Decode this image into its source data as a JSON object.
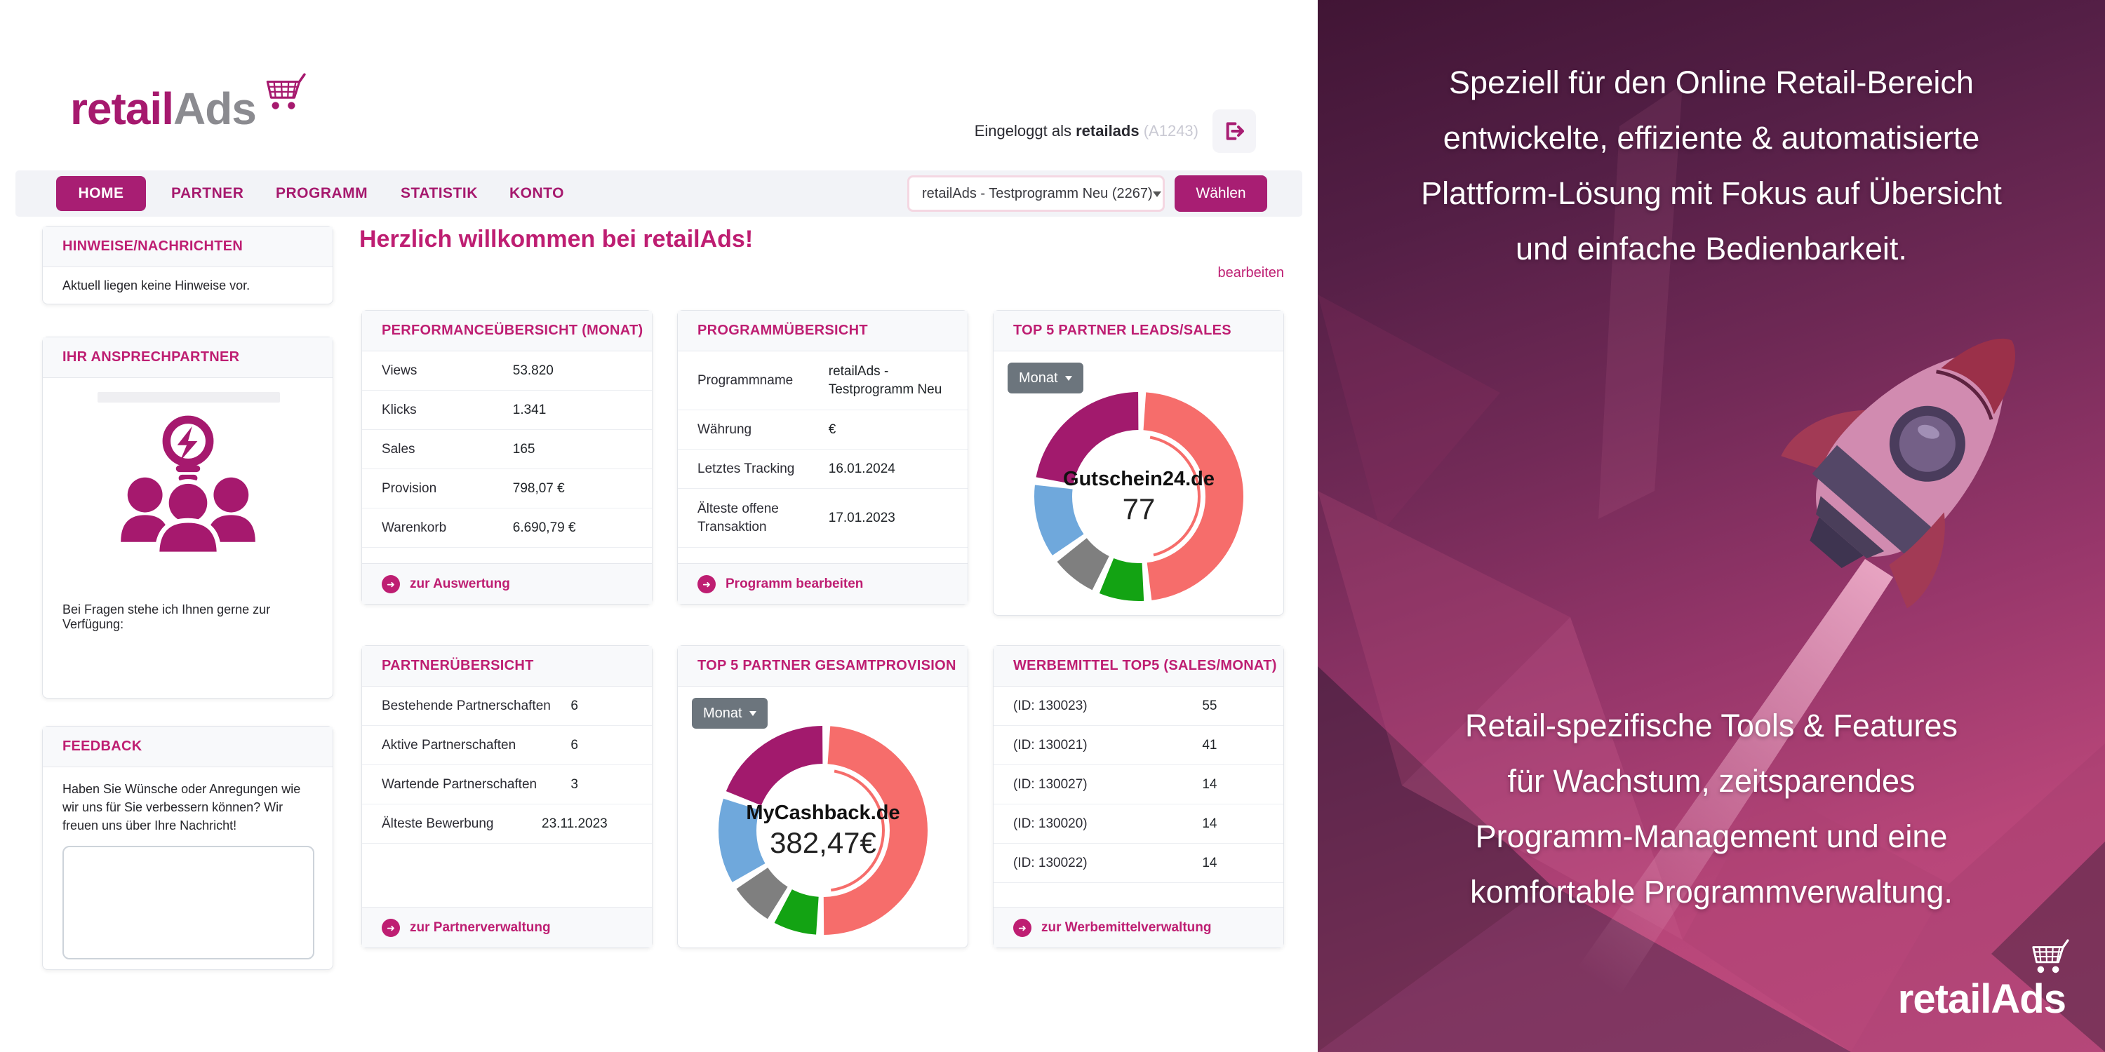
{
  "header": {
    "logo_part_1": "retail",
    "logo_part_2": "Ads",
    "login_prefix": "Eingeloggt als",
    "login_user": "retailads",
    "login_account": "(A1243)"
  },
  "nav": {
    "items": [
      {
        "label": "HOME",
        "active": true
      },
      {
        "label": "PARTNER",
        "active": false
      },
      {
        "label": "PROGRAMM",
        "active": false
      },
      {
        "label": "STATISTIK",
        "active": false
      },
      {
        "label": "KONTO",
        "active": false
      }
    ],
    "program_select_value": "retailAds - Testprogramm Neu (2267)",
    "choose_button": "Wählen"
  },
  "sidebar": {
    "notices": {
      "title": "HINWEISE/NACHRICHTEN",
      "empty_text": "Aktuell liegen keine Hinweise vor."
    },
    "contact": {
      "title": "IHR ANSPRECHPARTNER",
      "note": "Bei Fragen stehe ich Ihnen gerne zur Verfügung:"
    },
    "feedback": {
      "title": "FEEDBACK",
      "text": "Haben Sie Wünsche oder Anregungen wie wir uns für Sie verbessern können? Wir freuen uns über Ihre Nachricht!",
      "textarea_value": ""
    }
  },
  "main": {
    "welcome": "Herzlich willkommen bei retailAds!",
    "edit_link": "bearbeiten",
    "performance": {
      "title": "PERFORMANCEÜBERSICHT (MONAT)",
      "rows": [
        {
          "label": "Views",
          "value": "53.820"
        },
        {
          "label": "Klicks",
          "value": "1.341"
        },
        {
          "label": "Sales",
          "value": "165"
        },
        {
          "label": "Provision",
          "value": "798,07 €"
        },
        {
          "label": "Warenkorb",
          "value": "6.690,79 €"
        }
      ],
      "footer": "zur Auswertung"
    },
    "program": {
      "title": "PROGRAMMÜBERSICHT",
      "rows": [
        {
          "label": "Programmname",
          "value": "retailAds - Testprogramm Neu"
        },
        {
          "label": "Währung",
          "value": "€"
        },
        {
          "label": "Letztes Tracking",
          "value": "16.01.2024"
        },
        {
          "label": "Älteste offene Transaktion",
          "value": "17.01.2023"
        }
      ],
      "footer": "Programm bearbeiten"
    },
    "partners": {
      "title": "PARTNERÜBERSICHT",
      "rows": [
        {
          "label": "Bestehende Partnerschaften",
          "value": "6"
        },
        {
          "label": "Aktive Partnerschaften",
          "value": "6"
        },
        {
          "label": "Wartende Partnerschaften",
          "value": "3"
        },
        {
          "label": "Älteste Bewerbung",
          "value": "23.11.2023"
        }
      ],
      "footer": "zur Partnerverwaltung"
    },
    "ads": {
      "title": "WERBEMITTEL TOP5 (SALES/MONAT)",
      "rows": [
        {
          "label": "(ID: 130023)",
          "value": "55"
        },
        {
          "label": "(ID: 130021)",
          "value": "41"
        },
        {
          "label": "(ID: 130027)",
          "value": "14"
        },
        {
          "label": "(ID: 130020)",
          "value": "14"
        },
        {
          "label": "(ID: 130022)",
          "value": "14"
        }
      ],
      "footer": "zur Werbemittelverwaltung"
    }
  },
  "right_panel": {
    "top_lines": [
      "Speziell für den Online Retail-Bereich",
      "entwickelte, effiziente & automatisierte",
      "Plattform-Lösung mit Fokus auf Übersicht",
      "und einfache Bedienbarkeit."
    ],
    "bottom_lines": [
      "Retail-spezifische Tools & Features",
      "für Wachstum, zeitsparendes",
      "Programm-Management und eine",
      "komfortable Programmverwaltung."
    ],
    "logo": "retailAds"
  },
  "chart_data": [
    {
      "type": "donut",
      "title": "TOP 5 PARTNER LEADS/SALES",
      "filter": "Monat",
      "center": {
        "name": "Gutschein24.de",
        "value": "77"
      },
      "legend_position": "none",
      "segments": [
        {
          "label": "Gutschein24.de",
          "value": 77,
          "color": "#F66D6B",
          "highlighted": true
        },
        {
          "label": "",
          "value": 13,
          "color": "#13A313",
          "highlighted": false
        },
        {
          "label": "",
          "value": 13,
          "color": "#7F7F7F",
          "highlighted": false
        },
        {
          "label": "",
          "value": 20,
          "color": "#6FA8DC",
          "highlighted": false
        },
        {
          "label": "",
          "value": 37,
          "color": "#A21A6D",
          "highlighted": false
        }
      ]
    },
    {
      "type": "donut",
      "title": "TOP 5 PARTNER GESAMTPROVISION",
      "filter": "Monat",
      "center": {
        "name": "MyCashback.de",
        "value": "382,47€"
      },
      "legend_position": "none",
      "segments": [
        {
          "label": "MyCashback.de",
          "value": 382.47,
          "color": "#F66D6B",
          "highlighted": true
        },
        {
          "label": "",
          "value": 60,
          "color": "#13A313",
          "highlighted": false
        },
        {
          "label": "",
          "value": 60,
          "color": "#7F7F7F",
          "highlighted": false
        },
        {
          "label": "",
          "value": 110,
          "color": "#6FA8DC",
          "highlighted": false
        },
        {
          "label": "",
          "value": 153,
          "color": "#A21A6D",
          "highlighted": false
        }
      ]
    }
  ]
}
